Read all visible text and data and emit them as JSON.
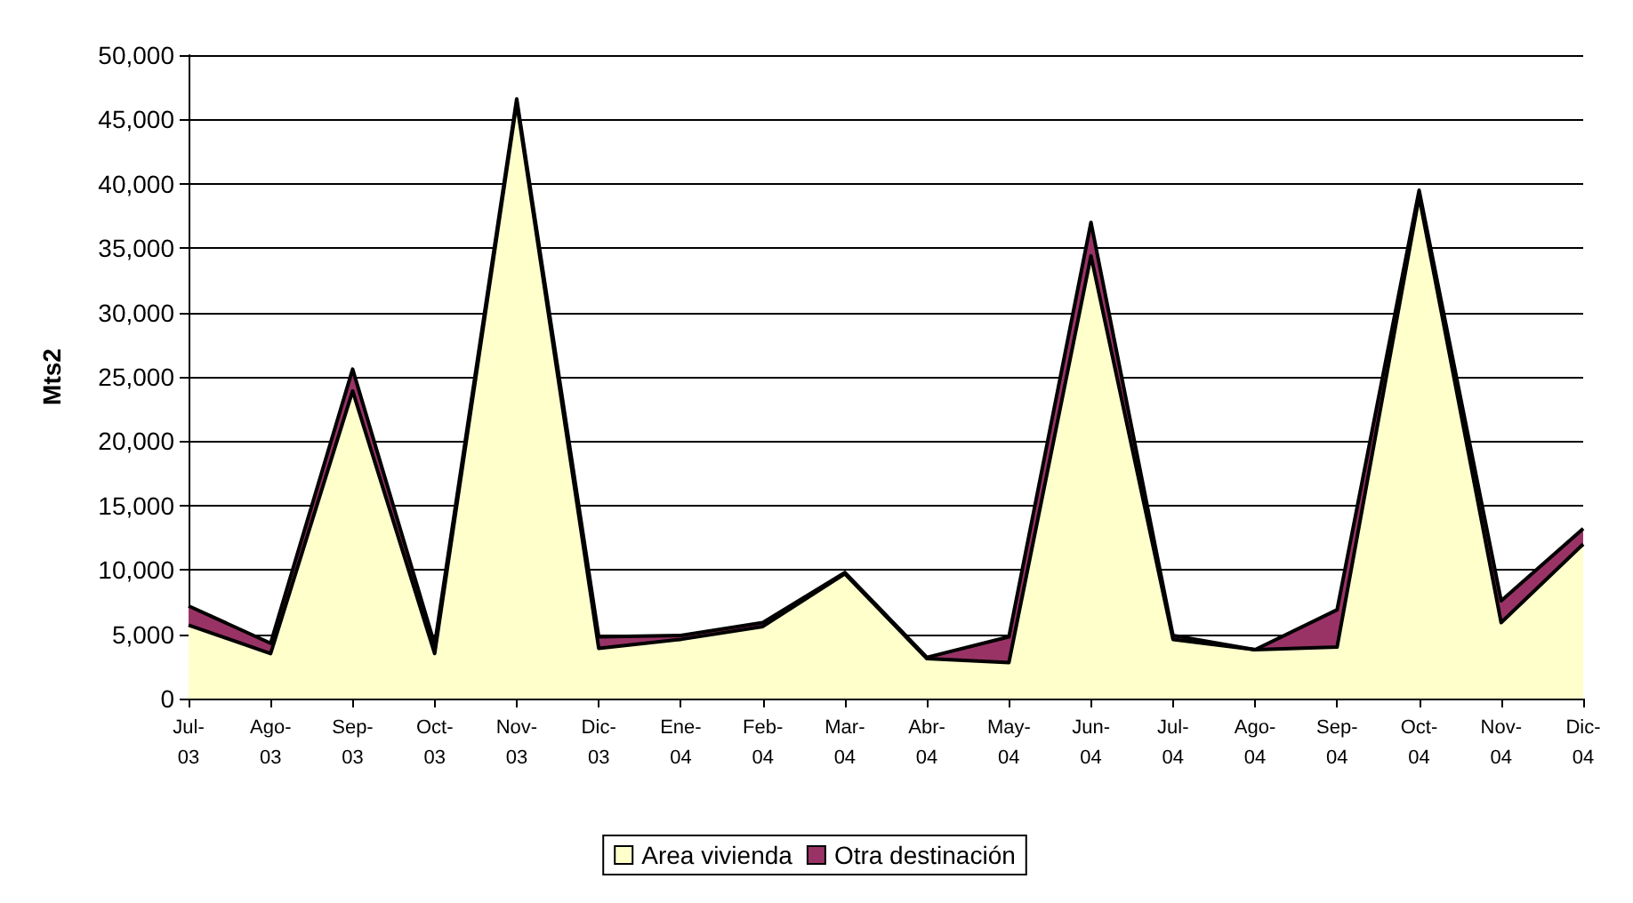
{
  "chart_data": {
    "type": "area",
    "stacked": true,
    "ylabel": "Mts2",
    "categories": [
      "Jul-03",
      "Ago-03",
      "Sep-03",
      "Oct-03",
      "Nov-03",
      "Dic-03",
      "Ene-04",
      "Feb-04",
      "Mar-04",
      "Abr-04",
      "May-04",
      "Jun-04",
      "Jul-04",
      "Ago-04",
      "Sep-04",
      "Oct-04",
      "Nov-04",
      "Dic-04"
    ],
    "series": [
      {
        "name": "Area vivienda",
        "color": "#ffffcc",
        "values": [
          5700,
          3500,
          23900,
          3500,
          46300,
          3900,
          4600,
          5600,
          9700,
          3100,
          2800,
          34400,
          4600,
          3800,
          4000,
          39000,
          5900,
          12000
        ]
      },
      {
        "name": "Otra destinación",
        "color": "#993366",
        "values": [
          1500,
          800,
          1700,
          700,
          300,
          900,
          300,
          300,
          100,
          100,
          2000,
          2600,
          300,
          0,
          2900,
          500,
          1700,
          1200
        ]
      }
    ],
    "ylim": [
      0,
      50000
    ],
    "yticks": [
      0,
      {
        "value": 5000,
        "label": "5,000"
      },
      {
        "value": 10000,
        "label": "10,000"
      },
      {
        "value": 15000,
        "label": "15,000"
      },
      {
        "value": 20000,
        "label": "20,000"
      },
      {
        "value": 25000,
        "label": "25,000"
      },
      {
        "value": 30000,
        "label": "30,000"
      },
      {
        "value": 35000,
        "label": "35,000"
      },
      {
        "value": 40000,
        "label": "40,000"
      },
      {
        "value": 45000,
        "label": "45,000"
      },
      {
        "value": 50000,
        "label": "50,000"
      }
    ],
    "grid": "y",
    "legend": "bottom"
  }
}
